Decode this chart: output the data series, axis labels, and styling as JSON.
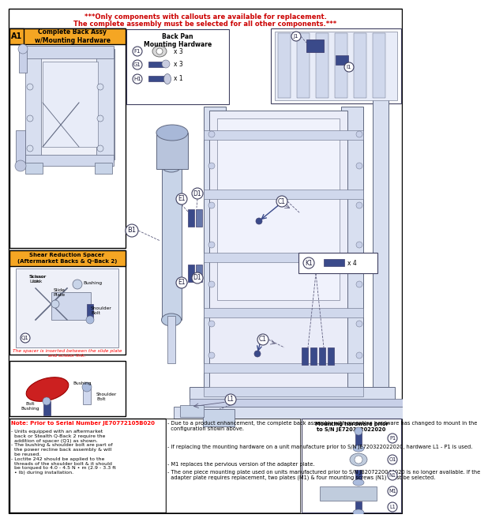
{
  "bg_color": "#ffffff",
  "title_warning": "***Only components with callouts are available for replacement.",
  "title_warning2": "The complete assembly must be selected for all other components.***",
  "title_color": "#cc0000",
  "box_a1_label": "A1",
  "box_a1_title": "Complete Back Assy\nw/Mounting Hardware",
  "box_a1_color": "#f5a623",
  "box_shear_title": "Shear Reduction Spacer\n(Aftermarket Backs & Q-Back 2)",
  "box_shear_color": "#f5a623",
  "note_title": "Note: Prior to Serial Number JE70772105B020",
  "note_text1": "- Units equipped with an aftermarket back or Stealth Q-Back 2 require the\n  addition of spacer (Q1) as shown.",
  "note_text2": "- The bushing & shoulder bolt are part of the power recline back assembly & will\n  be reused.",
  "note_text3": "- Loctite 242 should be applied to the threads of the shoulder bolt & it should\n  be torqued to 4.0 - 4.5 N • m (2.9 - 3.3 ft • lb) during installation.",
  "bullet1": "- Due to a product enhancement, the complete back assembly with mounting hardware has changed to mount in the\n  configuration shown above.",
  "bullet2": "- If replacing the mounting hardware on a unit manufacture prior to S/N JE720322022020, hardware L1 - P1 is used.",
  "bullet3": "- M1 replaces the pervious version of the adapter plate.",
  "bullet4": "- The one piece mounting plate used on units manufactured prior to S/N JB207220044020 is no longer available. If the\n  adapter plate requires replacement, two plates (M1) & four mounting screws (N1) must be selected.",
  "mount_hw_title": "Mounting hardware prior\nto S/N JE720322022020",
  "back_pan_title": "Back Pan\nMounting Hardware",
  "part_color": "#8899cc",
  "part_edge": "#404070",
  "line_color": "#606080",
  "callout_fc": "#ffffff",
  "callout_ec": "#404060",
  "blue_dark": "#3a4a8a",
  "blue_med": "#6677aa",
  "blue_light": "#aabbdd",
  "frame_fill": "#d8dff0",
  "frame_edge": "#606880"
}
